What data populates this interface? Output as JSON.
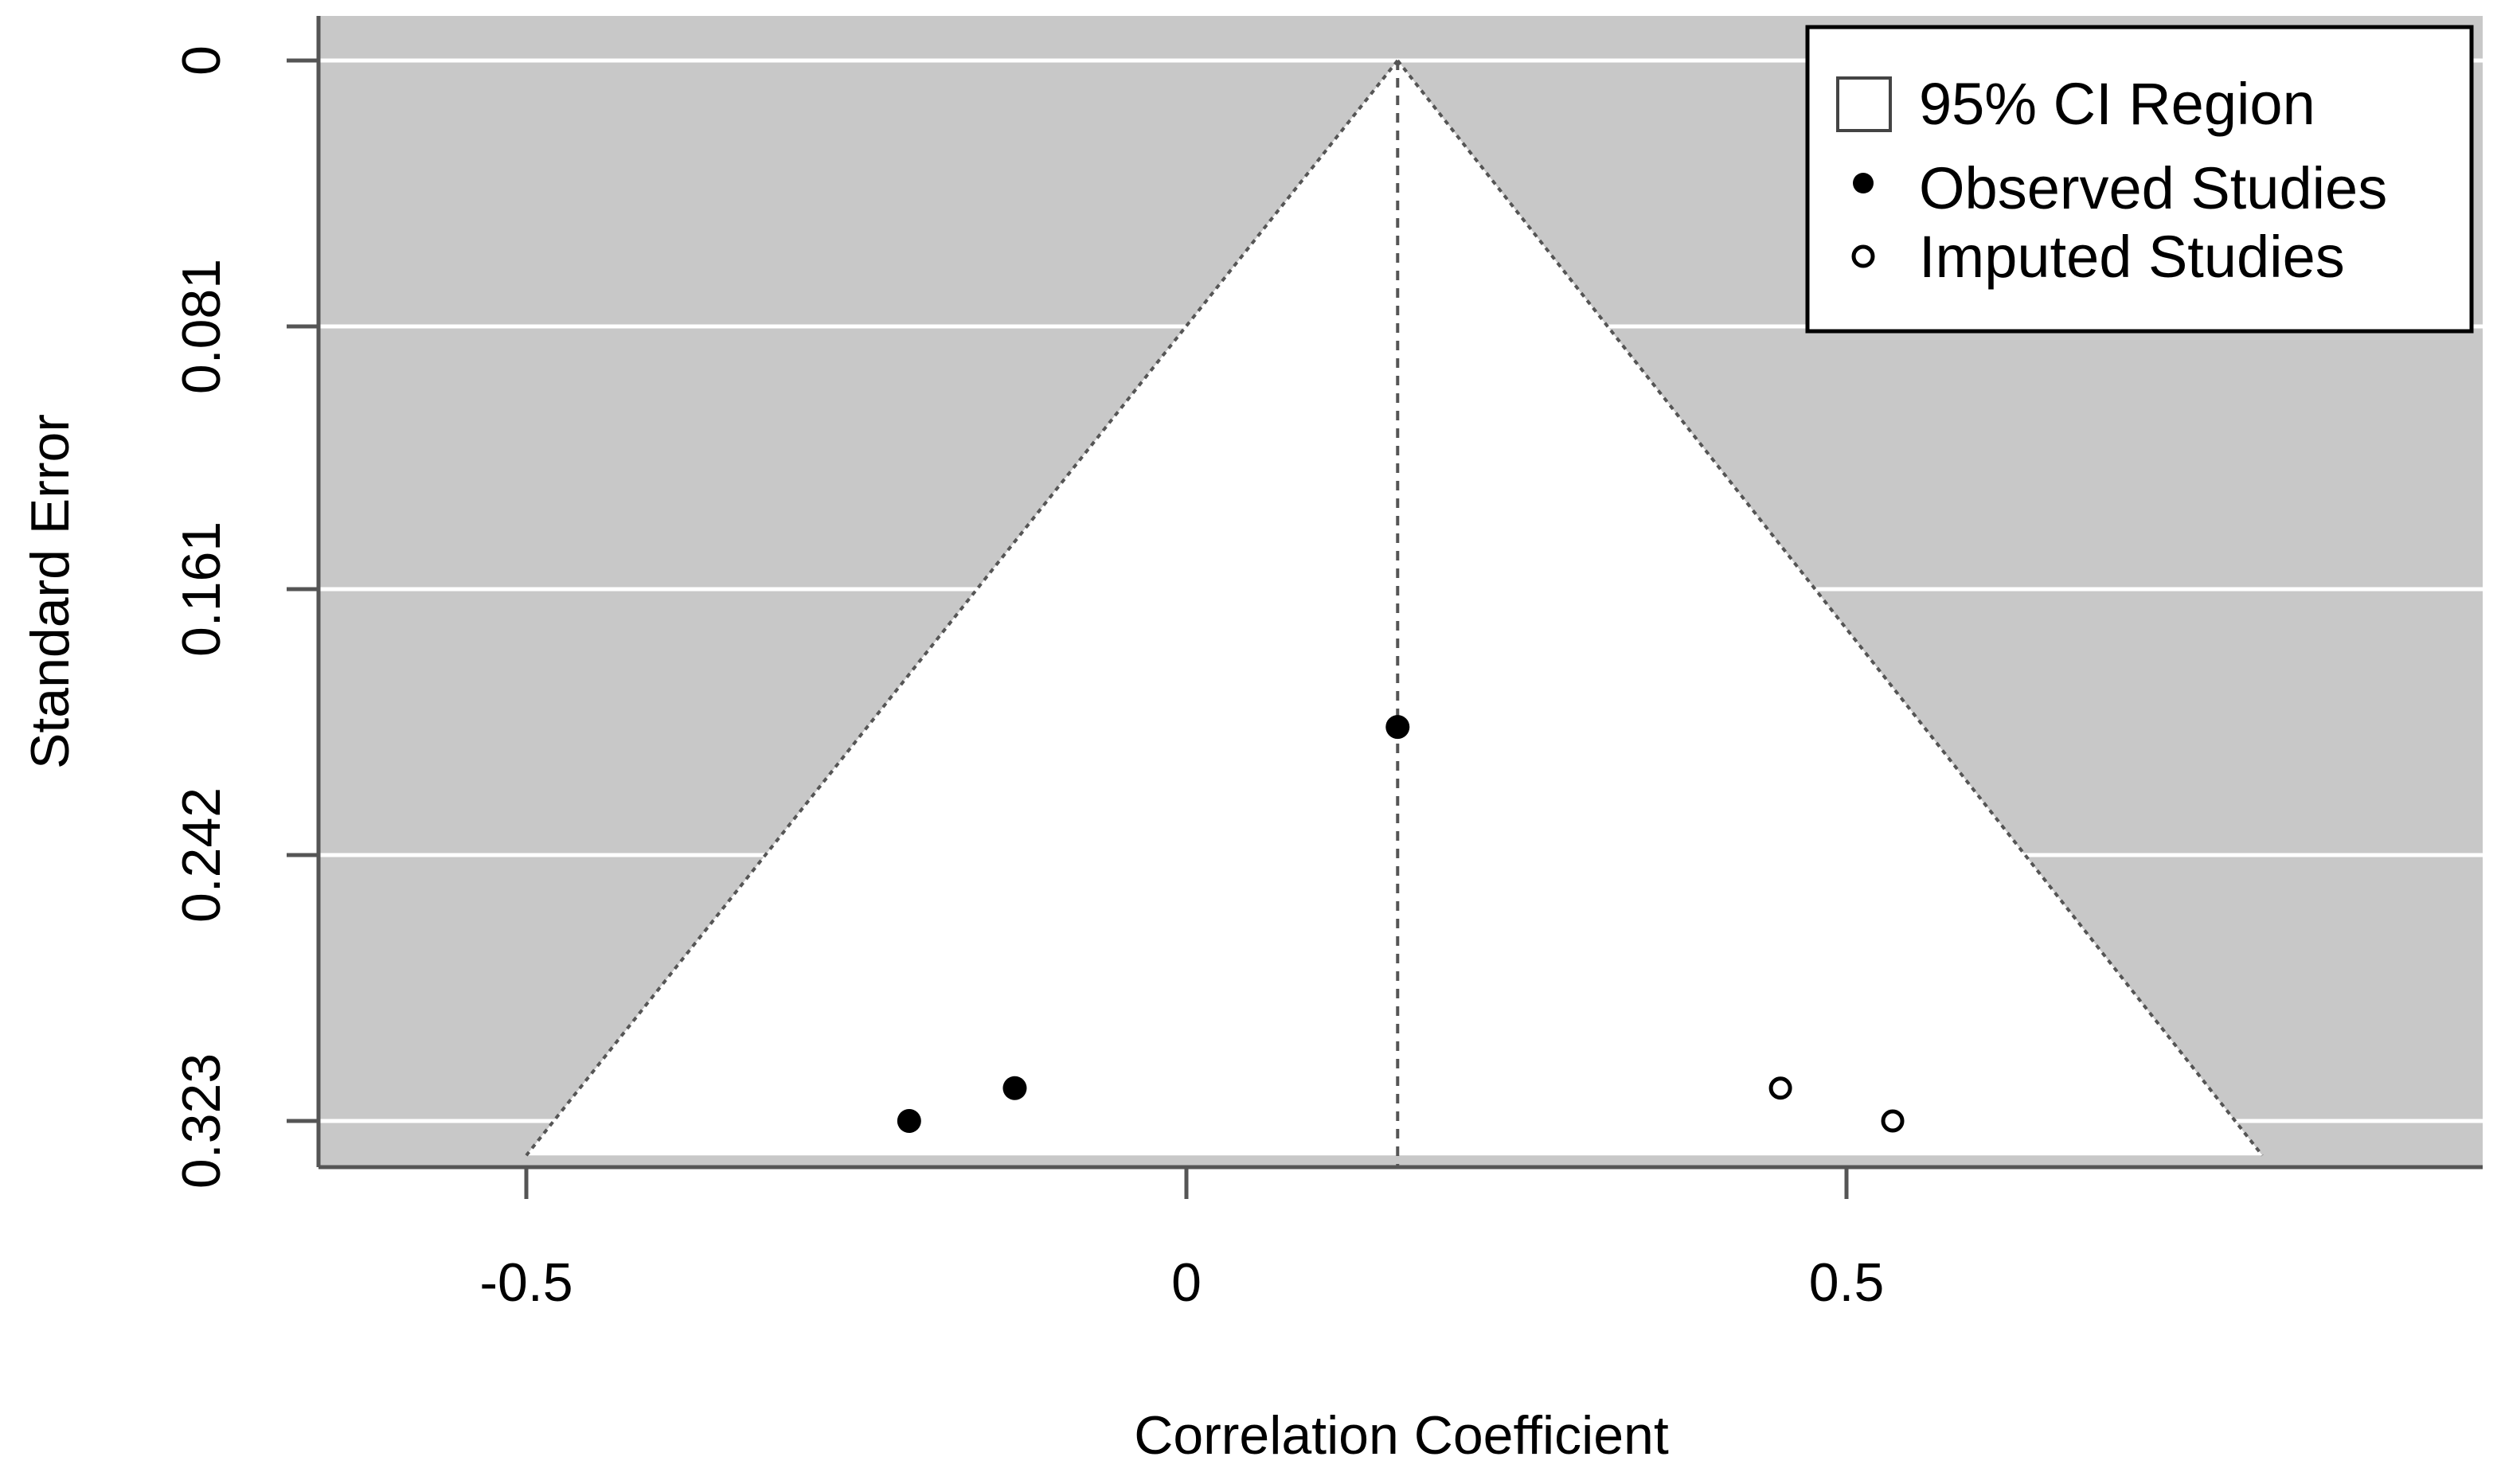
{
  "chart_data": {
    "type": "scatter",
    "subtype": "funnel",
    "title": "",
    "xlabel": "Correlation Coefficient",
    "ylabel": "Standard Error",
    "xlim": [
      -0.67,
      0.98
    ],
    "ylim": [
      0.3335,
      0.0
    ],
    "x_ticks": [
      {
        "value": -0.5,
        "label": "-0.5"
      },
      {
        "value": 0,
        "label": "0"
      },
      {
        "value": 0.5,
        "label": "0.5"
      }
    ],
    "y_ticks": [
      {
        "value": 0,
        "label": "0"
      },
      {
        "value": 0.081,
        "label": "0.081"
      },
      {
        "value": 0.161,
        "label": "0.161"
      },
      {
        "value": 0.242,
        "label": "0.242"
      },
      {
        "value": 0.323,
        "label": "0.323"
      }
    ],
    "y_reversed": true,
    "grid": true,
    "pooled_estimate": 0.16,
    "ci_region": {
      "apex": [
        0.16,
        0.0
      ],
      "base_se": 0.3335,
      "base_left": -0.5,
      "base_right": 0.815
    },
    "series": [
      {
        "name": "Observed Studies",
        "marker": "filled-circle",
        "points": [
          [
            0.16,
            0.203
          ],
          [
            -0.13,
            0.313
          ],
          [
            -0.21,
            0.323
          ]
        ]
      },
      {
        "name": "Imputed Studies",
        "marker": "open-circle",
        "points": [
          [
            0.45,
            0.313
          ],
          [
            0.535,
            0.323
          ]
        ]
      }
    ],
    "legend": {
      "position": "top-right",
      "entries": [
        {
          "label": "95% CI Region",
          "symbol": "open-square"
        },
        {
          "label": "Observed Studies",
          "symbol": "filled-circle"
        },
        {
          "label": "Imputed Studies",
          "symbol": "open-circle"
        }
      ]
    },
    "colors": {
      "outside_region": "#c8c8c8",
      "inside_region": "#ffffff",
      "gridline": "#ffffff",
      "points": "#000000"
    }
  }
}
